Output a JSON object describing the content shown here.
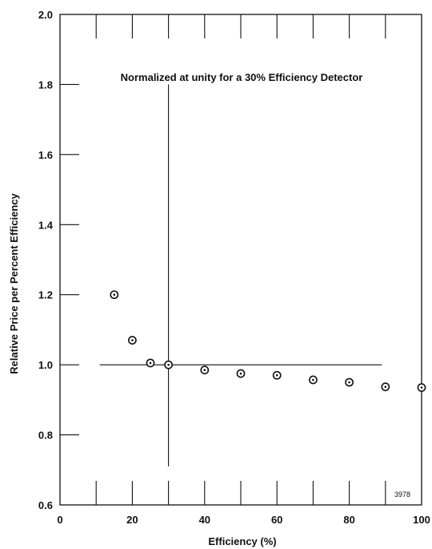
{
  "chart_data": {
    "type": "scatter",
    "title": "",
    "xlabel": "Efficiency (%)",
    "ylabel": "Relative Price per Percent Efficiency",
    "xlim": [
      0,
      100
    ],
    "ylim": [
      0.6,
      2.0
    ],
    "x_ticks": [
      0,
      20,
      40,
      60,
      80,
      100
    ],
    "x_tick_labels": [
      "0",
      "20",
      "40",
      "60",
      "80",
      "100"
    ],
    "y_ticks": [
      0.6,
      0.8,
      1.0,
      1.2,
      1.4,
      1.6,
      1.8,
      2.0
    ],
    "y_tick_labels": [
      "0.6",
      "0.8",
      "1.0",
      "1.2",
      "1.4",
      "1.6",
      "1.8",
      "2.0"
    ],
    "grid": false,
    "series": [
      {
        "x": [
          15,
          20,
          25,
          30,
          40,
          50,
          60,
          70,
          80,
          90,
          100
        ],
        "y": [
          1.2,
          1.07,
          1.005,
          1.0,
          0.985,
          0.975,
          0.97,
          0.957,
          0.95,
          0.937,
          0.935
        ]
      }
    ],
    "reference_lines": {
      "vertical_x": 30,
      "vertical_y_range": [
        0.71,
        1.8
      ],
      "horizontal_y": 1.0,
      "horizontal_x_range": [
        11,
        89
      ]
    },
    "annotation": "Normalized at unity for a 30% Efficiency Detector",
    "figure_id": "3978",
    "color": "#111111"
  }
}
